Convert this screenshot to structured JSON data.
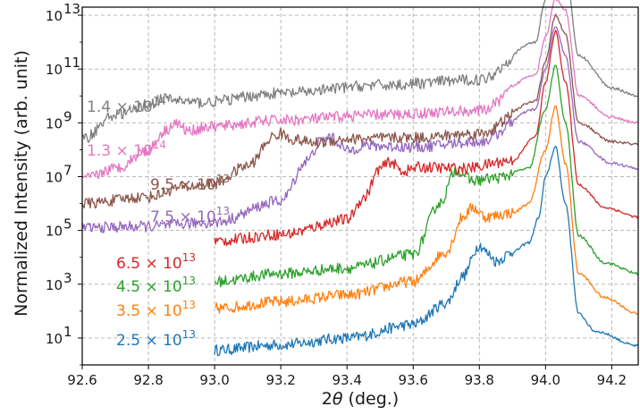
{
  "chart_data": {
    "type": "line",
    "xlabel_main": "2",
    "xlabel_theta": "θ",
    "xlabel_unit": " (deg.)",
    "ylabel": "Normalized Intensity (arb. unit)",
    "xlim": [
      92.6,
      94.28
    ],
    "ylim_log10": [
      0,
      13.3
    ],
    "y_scale": "log",
    "grid": true,
    "x_ticks": [
      92.6,
      92.8,
      93.0,
      93.2,
      93.4,
      93.6,
      93.8,
      94.0,
      94.2
    ],
    "x_tick_labels": [
      "92.6",
      "92.8",
      "93.0",
      "93.2",
      "93.4",
      "93.6",
      "93.8",
      "94.0",
      "94.2"
    ],
    "y_tick_exponents": [
      1,
      3,
      5,
      7,
      9,
      11,
      13
    ],
    "y_tick_base": "10",
    "series": [
      {
        "label_mantissa": "2.5",
        "label_exponent": "13",
        "color": "#1f77b4",
        "x_start": 93.0,
        "points": [
          [
            93.0,
            0.55
          ],
          [
            93.2,
            0.75
          ],
          [
            93.4,
            1.0
          ],
          [
            93.6,
            1.5
          ],
          [
            93.7,
            2.3
          ],
          [
            93.75,
            3.3
          ],
          [
            93.8,
            4.45
          ],
          [
            93.83,
            4.1
          ],
          [
            93.85,
            3.85
          ],
          [
            93.9,
            4.2
          ],
          [
            93.95,
            4.55
          ],
          [
            93.98,
            5.5
          ],
          [
            94.0,
            7.0
          ],
          [
            94.03,
            8.1
          ],
          [
            94.06,
            6.0
          ],
          [
            94.1,
            1.9
          ],
          [
            94.15,
            1.25
          ],
          [
            94.28,
            0.7
          ]
        ]
      },
      {
        "label_mantissa": "3.5",
        "label_exponent": "13",
        "color": "#ff7f0e",
        "x_start": 93.0,
        "points": [
          [
            93.0,
            2.1
          ],
          [
            93.2,
            2.35
          ],
          [
            93.4,
            2.6
          ],
          [
            93.6,
            3.1
          ],
          [
            93.7,
            4.2
          ],
          [
            93.75,
            5.5
          ],
          [
            93.78,
            5.85
          ],
          [
            93.82,
            5.5
          ],
          [
            93.9,
            5.65
          ],
          [
            93.95,
            6.0
          ],
          [
            94.0,
            8.0
          ],
          [
            94.03,
            9.6
          ],
          [
            94.06,
            7.5
          ],
          [
            94.1,
            3.4
          ],
          [
            94.18,
            2.5
          ],
          [
            94.28,
            1.9
          ]
        ]
      },
      {
        "label_mantissa": "4.5",
        "label_exponent": "13",
        "color": "#2ca02c",
        "x_start": 93.0,
        "points": [
          [
            93.0,
            3.1
          ],
          [
            93.2,
            3.4
          ],
          [
            93.4,
            3.6
          ],
          [
            93.6,
            4.1
          ],
          [
            93.68,
            6.0
          ],
          [
            93.73,
            7.25
          ],
          [
            93.78,
            6.85
          ],
          [
            93.85,
            6.95
          ],
          [
            93.95,
            7.3
          ],
          [
            94.0,
            9.5
          ],
          [
            94.03,
            11.1
          ],
          [
            94.06,
            9.0
          ],
          [
            94.1,
            4.8
          ],
          [
            94.18,
            3.8
          ],
          [
            94.28,
            3.4
          ]
        ]
      },
      {
        "label_mantissa": "6.5",
        "label_exponent": "13",
        "color": "#d62728",
        "x_start": 93.0,
        "points": [
          [
            93.0,
            4.6
          ],
          [
            93.2,
            4.85
          ],
          [
            93.4,
            5.4
          ],
          [
            93.45,
            6.2
          ],
          [
            93.5,
            7.3
          ],
          [
            93.53,
            7.55
          ],
          [
            93.57,
            7.2
          ],
          [
            93.62,
            7.35
          ],
          [
            93.75,
            7.3
          ],
          [
            93.9,
            7.6
          ],
          [
            93.97,
            8.5
          ],
          [
            94.0,
            10.5
          ],
          [
            94.03,
            12.4
          ],
          [
            94.06,
            10.5
          ],
          [
            94.1,
            6.7
          ],
          [
            94.18,
            5.85
          ],
          [
            94.28,
            5.5
          ]
        ]
      },
      {
        "label_mantissa": "7.5",
        "label_exponent": "13",
        "color": "#9467bd",
        "x_start": 92.6,
        "points": [
          [
            92.6,
            5.1
          ],
          [
            92.8,
            5.15
          ],
          [
            93.0,
            5.3
          ],
          [
            93.2,
            6.1
          ],
          [
            93.28,
            7.6
          ],
          [
            93.32,
            8.3
          ],
          [
            93.35,
            8.5
          ],
          [
            93.37,
            8.3
          ],
          [
            93.4,
            7.95
          ],
          [
            93.45,
            8.15
          ],
          [
            93.6,
            8.1
          ],
          [
            93.8,
            8.3
          ],
          [
            93.97,
            9.5
          ],
          [
            94.0,
            11.0
          ],
          [
            94.03,
            12.6
          ],
          [
            94.06,
            11.5
          ],
          [
            94.1,
            8.3
          ],
          [
            94.2,
            7.5
          ],
          [
            94.28,
            7.3
          ]
        ]
      },
      {
        "label_mantissa": "9.5",
        "label_exponent": "13",
        "color": "#8c564b",
        "x_start": 92.6,
        "points": [
          [
            92.6,
            6.0
          ],
          [
            92.8,
            6.25
          ],
          [
            92.9,
            6.6
          ],
          [
            93.0,
            6.75
          ],
          [
            93.1,
            7.4
          ],
          [
            93.18,
            8.5
          ],
          [
            93.2,
            8.6
          ],
          [
            93.23,
            8.4
          ],
          [
            93.3,
            8.25
          ],
          [
            93.4,
            8.4
          ],
          [
            93.6,
            8.45
          ],
          [
            93.8,
            8.6
          ],
          [
            93.97,
            9.8
          ],
          [
            94.0,
            11.3
          ],
          [
            94.03,
            13.0
          ],
          [
            94.06,
            12.3
          ],
          [
            94.1,
            9.0
          ],
          [
            94.2,
            8.3
          ],
          [
            94.28,
            8.2
          ]
        ]
      },
      {
        "label_mantissa": "1.3",
        "label_exponent": "14",
        "color": "#e377c2",
        "x_start": 92.6,
        "points": [
          [
            92.6,
            6.9
          ],
          [
            92.7,
            7.3
          ],
          [
            92.8,
            8.0
          ],
          [
            92.85,
            8.7
          ],
          [
            92.88,
            9.0
          ],
          [
            92.92,
            8.7
          ],
          [
            92.98,
            8.85
          ],
          [
            93.2,
            9.1
          ],
          [
            93.5,
            9.3
          ],
          [
            93.8,
            9.45
          ],
          [
            93.97,
            10.8
          ],
          [
            94.0,
            12.2
          ],
          [
            94.03,
            13.6
          ],
          [
            94.06,
            13.2
          ],
          [
            94.1,
            10.0
          ],
          [
            94.2,
            9.2
          ],
          [
            94.28,
            9.0
          ]
        ]
      },
      {
        "label_mantissa": "1.4",
        "label_exponent": "14",
        "color": "#7f7f7f",
        "x_start": 92.6,
        "points": [
          [
            92.6,
            8.4
          ],
          [
            92.7,
            9.3
          ],
          [
            92.75,
            9.45
          ],
          [
            92.8,
            9.7
          ],
          [
            92.85,
            9.9
          ],
          [
            92.88,
            9.85
          ],
          [
            92.95,
            9.75
          ],
          [
            93.2,
            10.1
          ],
          [
            93.5,
            10.4
          ],
          [
            93.8,
            10.6
          ],
          [
            93.97,
            12.0
          ],
          [
            94.0,
            13.6
          ],
          [
            94.03,
            14.95
          ],
          [
            94.06,
            14.6
          ],
          [
            94.1,
            11.5
          ],
          [
            94.2,
            10.3
          ],
          [
            94.28,
            10.0
          ]
        ]
      }
    ]
  }
}
